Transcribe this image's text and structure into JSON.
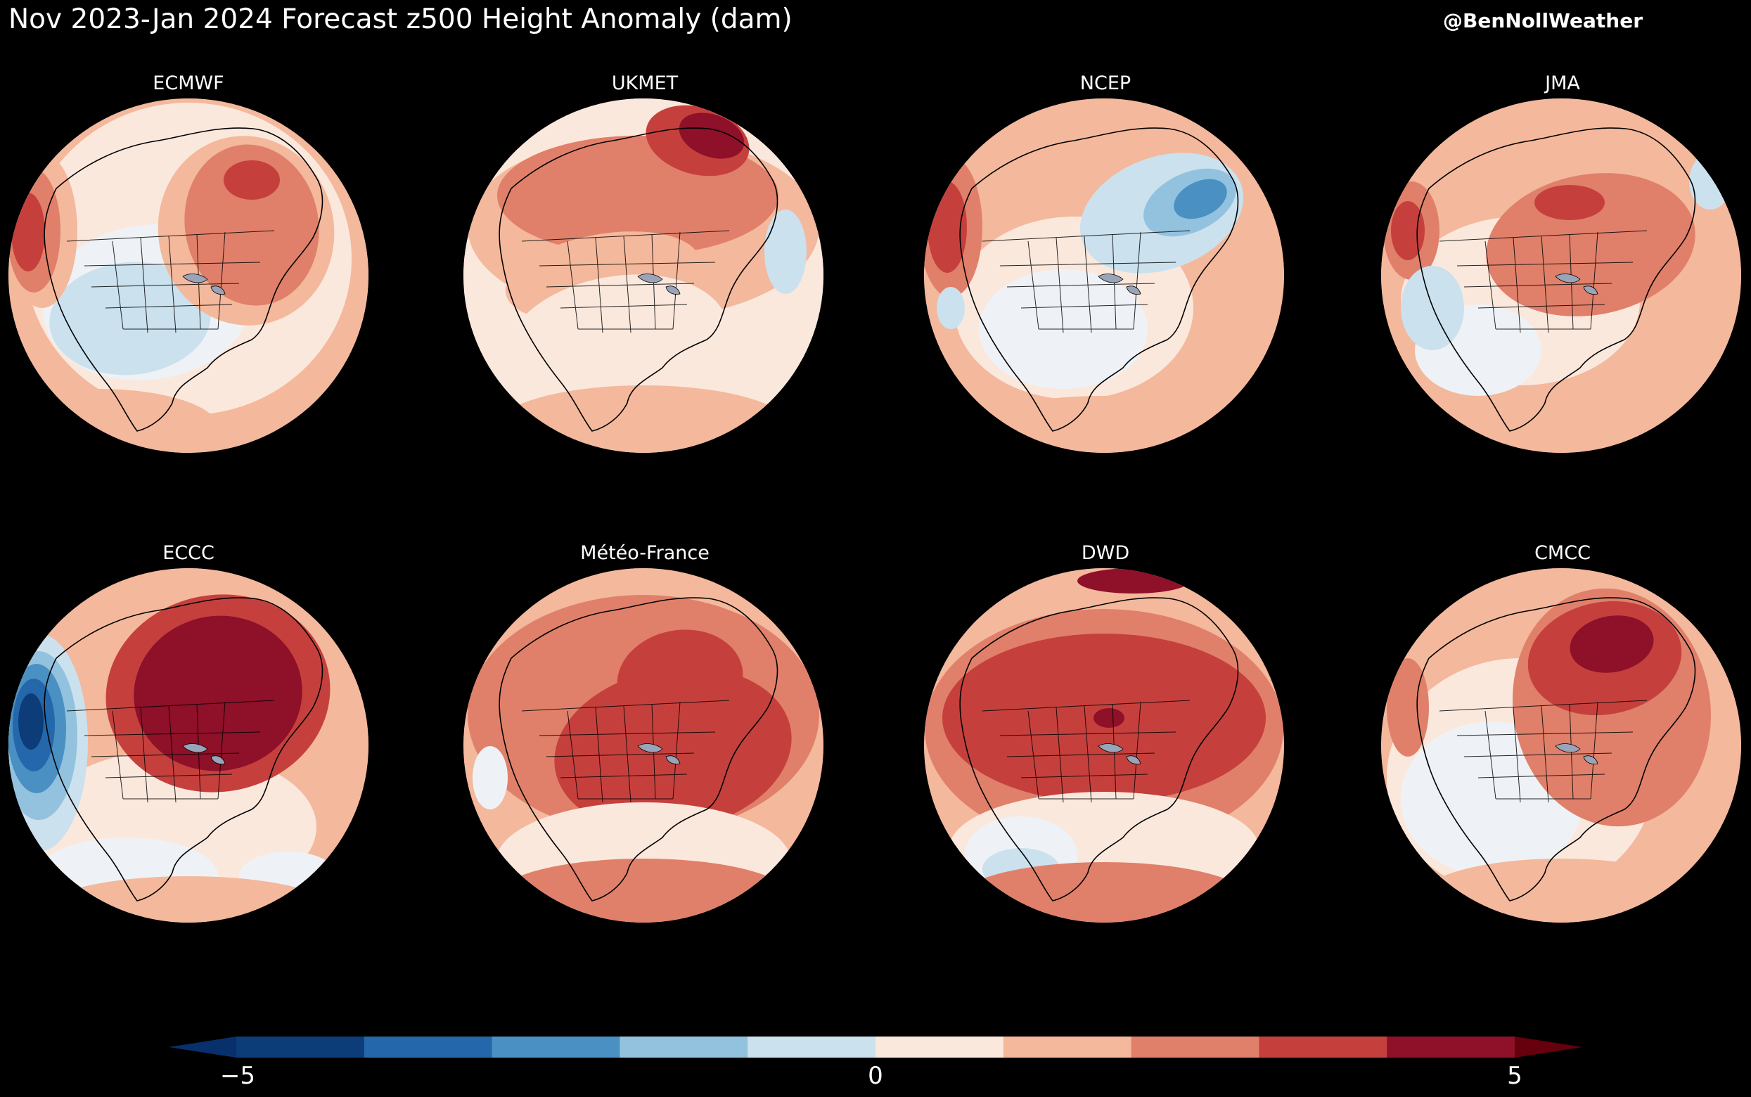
{
  "title": "Nov 2023-Jan 2024 Forecast z500 Height Anomaly (dam)",
  "credit": "@BenNollWeather",
  "colors": {
    "background": "#000000",
    "scale": [
      "#0c3d78",
      "#2468ab",
      "#4a90c2",
      "#93c2df",
      "#cbe1ee",
      "#eef2f6",
      "#fbe8dd",
      "#f4b89c",
      "#e0806a",
      "#c5403d",
      "#8e1029"
    ]
  },
  "panels": [
    {
      "label": "ECMWF",
      "pattern": "ecmwf"
    },
    {
      "label": "UKMET",
      "pattern": "ukmet"
    },
    {
      "label": "NCEP",
      "pattern": "ncep"
    },
    {
      "label": "JMA",
      "pattern": "jma"
    },
    {
      "label": "ECCC",
      "pattern": "eccc"
    },
    {
      "label": "Météo-France",
      "pattern": "meteo"
    },
    {
      "label": "DWD",
      "pattern": "dwd"
    },
    {
      "label": "CMCC",
      "pattern": "cmcc"
    }
  ],
  "colorbar": {
    "min": -5,
    "max": 5,
    "ticks": [
      "−5",
      "0",
      "5"
    ],
    "extend": "both"
  }
}
